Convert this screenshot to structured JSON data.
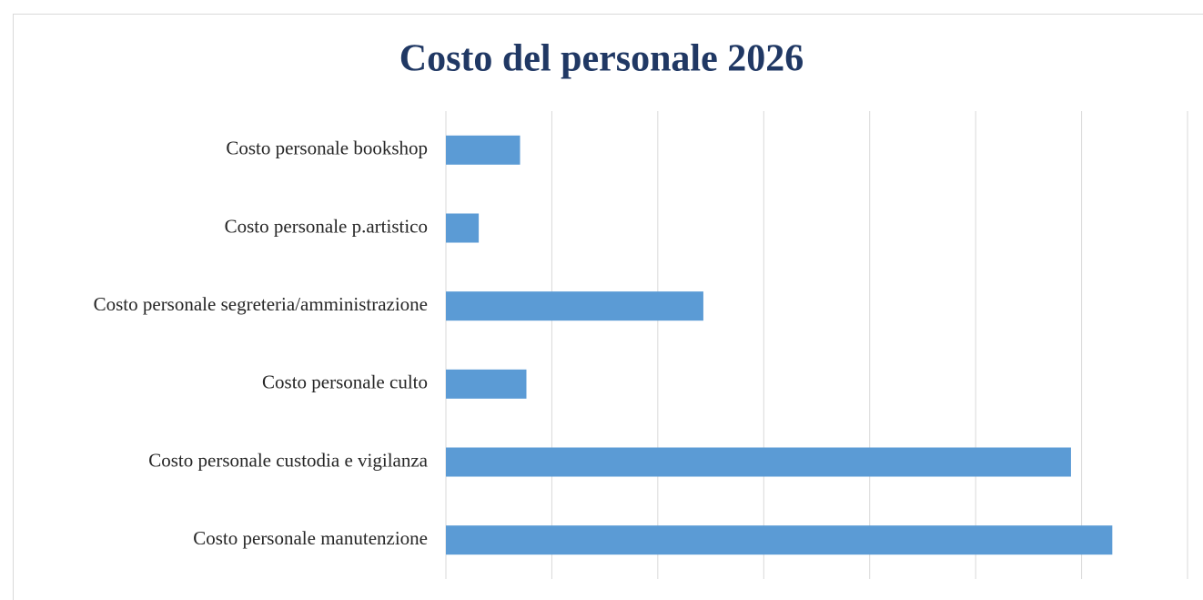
{
  "chart_data": {
    "type": "hbar",
    "title": "Costo del personale 2026",
    "categories": [
      "Costo personale bookshop",
      "Costo personale p.artistico",
      "Costo personale segreteria/amministrazione",
      "Costo personale culto",
      "Costo personale custodia e vigilanza",
      "Costo personale manutenzione"
    ],
    "values": [
      0.7,
      0.31,
      2.43,
      0.76,
      5.9,
      6.29
    ],
    "color": "#5b9bd5",
    "xlim": [
      0,
      7
    ],
    "xticks": [
      0,
      1,
      2,
      3,
      4,
      5,
      6,
      7
    ],
    "grid": true
  }
}
